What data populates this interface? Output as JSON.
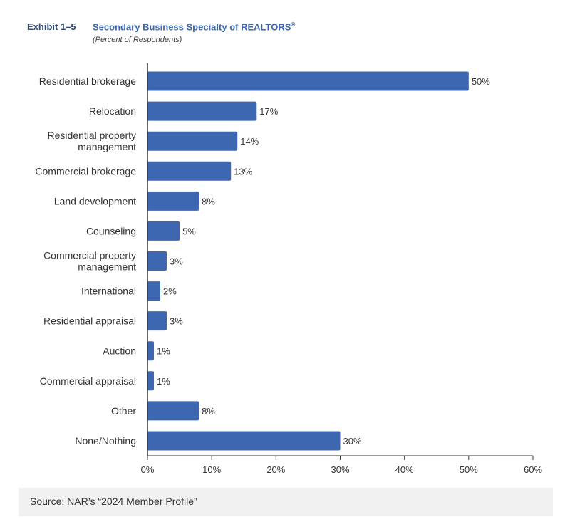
{
  "header": {
    "exhibit": "Exhibit 1–5",
    "title": "Secondary Business Specialty of REALTORS",
    "title_mark": "®",
    "subtitle": "(Percent of Respondents)"
  },
  "source": "Source: NAR’s “2024 Member Profile”",
  "colors": {
    "bar": "#3e67b1",
    "axis": "#333333",
    "text": "#333333",
    "title": "#3b68b0"
  },
  "chart_data": {
    "type": "bar",
    "orientation": "horizontal",
    "categories": [
      [
        "Residential brokerage"
      ],
      [
        "Relocation"
      ],
      [
        "Residential property",
        "management"
      ],
      [
        "Commercial brokerage"
      ],
      [
        "Land development"
      ],
      [
        "Counseling"
      ],
      [
        "Commercial property",
        "management"
      ],
      [
        "International"
      ],
      [
        "Residential appraisal"
      ],
      [
        "Auction"
      ],
      [
        "Commercial appraisal"
      ],
      [
        "Other"
      ],
      [
        "None/Nothing"
      ]
    ],
    "values": [
      50,
      17,
      14,
      13,
      8,
      5,
      3,
      2,
      3,
      1,
      1,
      8,
      30
    ],
    "data_labels": [
      "50%",
      "17%",
      "14%",
      "13%",
      "8%",
      "5%",
      "3%",
      "2%",
      "3%",
      "1%",
      "1%",
      "8%",
      "30%"
    ],
    "xlim": [
      0,
      60
    ],
    "x_ticks": [
      0,
      10,
      20,
      30,
      40,
      50,
      60
    ],
    "x_tick_labels": [
      "0%",
      "10%",
      "20%",
      "30%",
      "40%",
      "50%",
      "60%"
    ],
    "grid": false,
    "legend": false
  }
}
